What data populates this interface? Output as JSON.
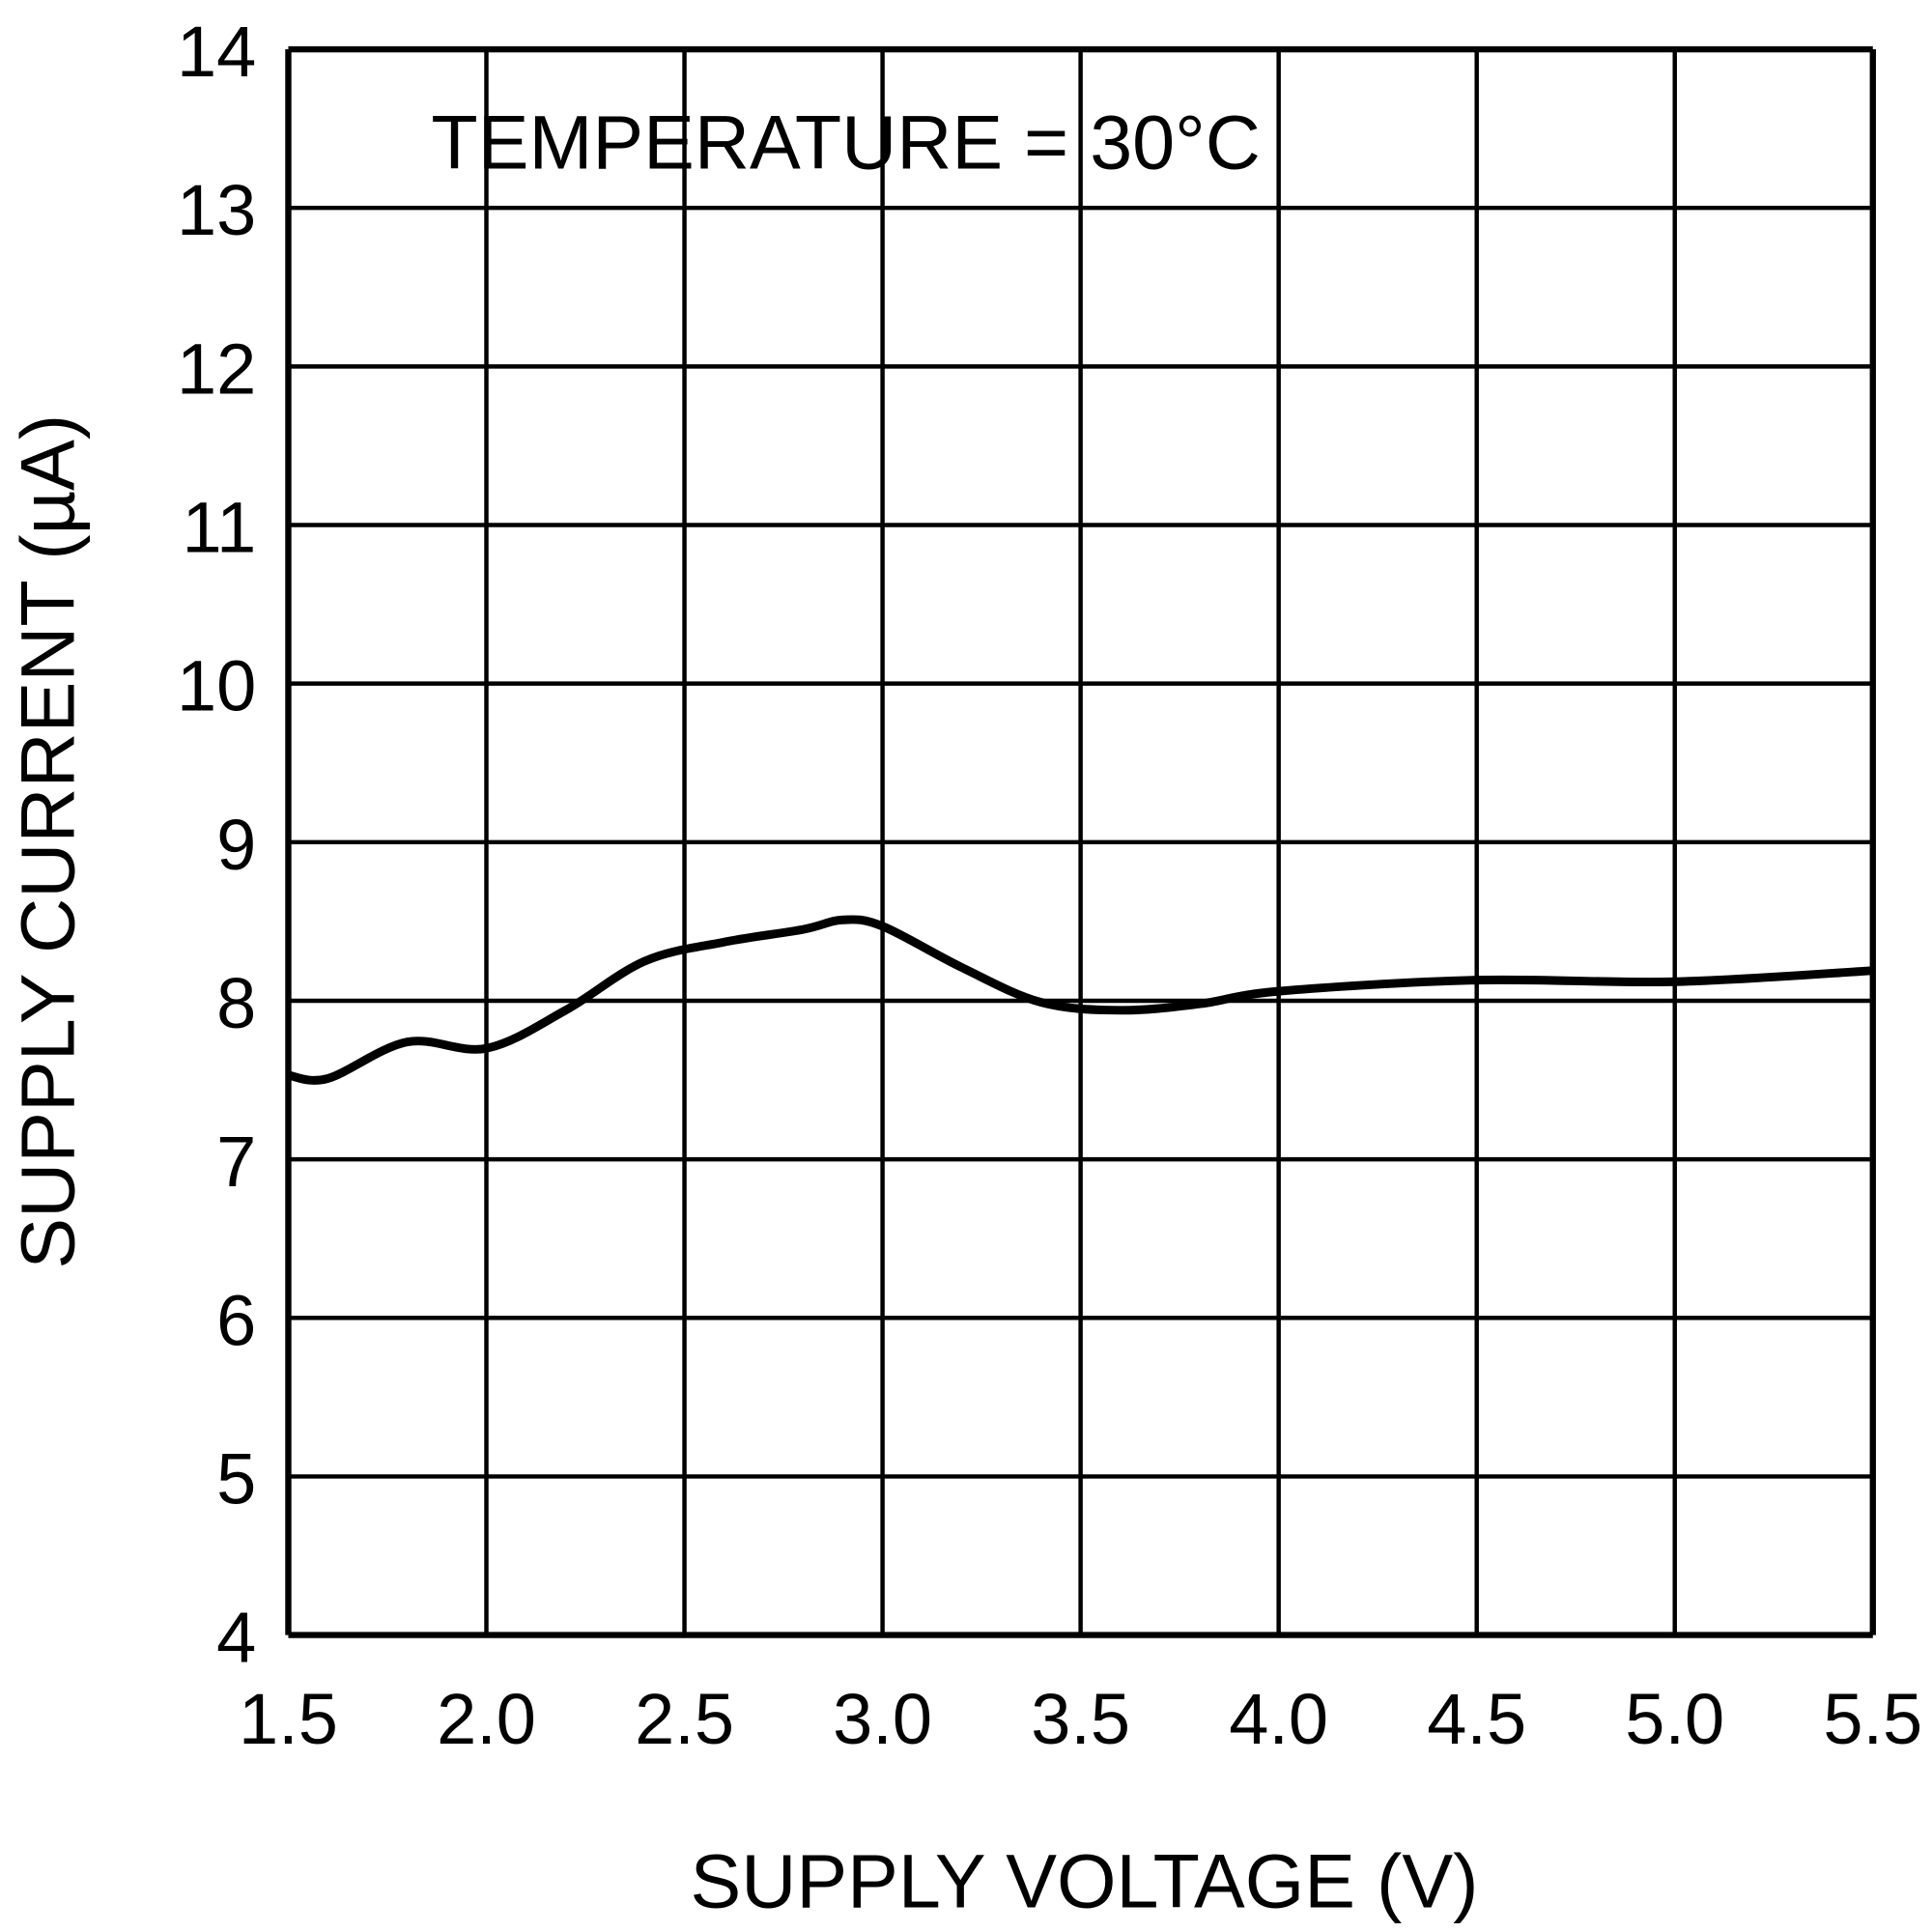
{
  "chart_data": {
    "type": "line",
    "xlabel": "SUPPLY VOLTAGE (V)",
    "ylabel": "SUPPLY CURRENT (µA)",
    "annotation": "TEMPERATURE = 30°C",
    "xlim": [
      1.5,
      5.5
    ],
    "ylim": [
      4,
      14
    ],
    "grid": true,
    "x_ticks": [
      "1.5",
      "2.0",
      "2.5",
      "3.0",
      "3.5",
      "4.0",
      "4.5",
      "5.0",
      "5.5"
    ],
    "y_ticks": [
      "4",
      "5",
      "6",
      "7",
      "8",
      "9",
      "10",
      "11",
      "12",
      "13",
      "14"
    ],
    "series": [
      {
        "color": "#000000",
        "x": [
          1.5,
          1.6,
          1.8,
          2.0,
          2.2,
          2.4,
          2.6,
          2.8,
          2.9,
          3.0,
          3.2,
          3.4,
          3.6,
          3.8,
          4.0,
          4.5,
          5.0,
          5.5
        ],
        "y": [
          7.53,
          7.51,
          7.74,
          7.7,
          7.94,
          8.25,
          8.37,
          8.45,
          8.51,
          8.47,
          8.21,
          7.99,
          7.94,
          7.98,
          8.06,
          8.13,
          8.12,
          8.19
        ]
      }
    ]
  }
}
